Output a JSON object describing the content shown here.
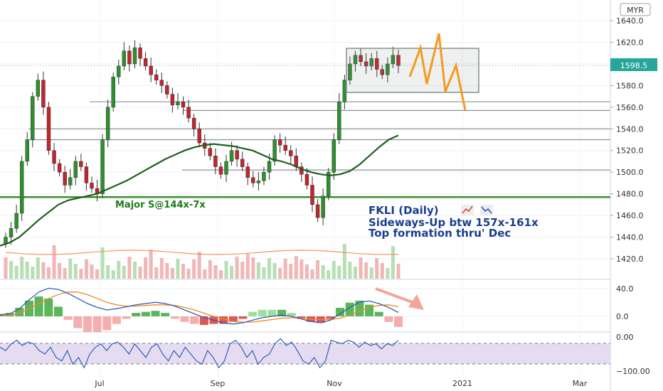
{
  "chart_data": {
    "type": "candlestick",
    "currency_badge": "MYR",
    "last_price_label": "1598.5",
    "price_axis": {
      "min": 1400,
      "max": 1650,
      "ticks": [
        "1640.0",
        "1620.0",
        "1600.0",
        "1580.0",
        "1560.0",
        "1540.0",
        "1520.0",
        "1500.0",
        "1480.0",
        "1460.0",
        "1440.0",
        "1420.0"
      ]
    },
    "macd_axis": {
      "ticks": [
        "40.0",
        "0.0"
      ]
    },
    "rsi_axis": {
      "ticks": [
        "0.00",
        "−100.00"
      ]
    },
    "x_ticks": [
      "Jul",
      "Sep",
      "Nov",
      "2021",
      "Mar"
    ],
    "annotations": {
      "support": "Major S@144x-7x",
      "title": "FKLI (Daily)",
      "line2": "Sideways-Up btw 157x-161x",
      "line3": "Top formation thru' Dec"
    },
    "horizontal_levels": [
      1565,
      1557,
      1540,
      1530,
      1502,
      1477
    ],
    "major_support": 1477,
    "range_box": {
      "from": 1573,
      "to": 1613
    },
    "close": [
      1440,
      1448,
      1462,
      1510,
      1530,
      1570,
      1585,
      1560,
      1520,
      1508,
      1500,
      1488,
      1495,
      1510,
      1505,
      1490,
      1485,
      1480,
      1530,
      1560,
      1588,
      1598,
      1612,
      1600,
      1615,
      1605,
      1598,
      1590,
      1585,
      1580,
      1572,
      1562,
      1565,
      1560,
      1550,
      1540,
      1527,
      1522,
      1515,
      1505,
      1498,
      1510,
      1520,
      1512,
      1505,
      1495,
      1490,
      1492,
      1500,
      1510,
      1530,
      1525,
      1520,
      1515,
      1505,
      1498,
      1488,
      1470,
      1458,
      1478,
      1500,
      1530,
      1565,
      1585,
      1600,
      1608,
      1602,
      1598,
      1605,
      1595,
      1590,
      1600,
      1608,
      1598.5
    ],
    "ma": [
      1432,
      1435,
      1440,
      1448,
      1456,
      1463,
      1470,
      1474,
      1476,
      1478,
      1480,
      1484,
      1488,
      1492,
      1497,
      1502,
      1507,
      1512,
      1516,
      1520,
      1523,
      1525,
      1526,
      1525,
      1524,
      1522,
      1520,
      1516,
      1512,
      1510,
      1507,
      1503,
      1500,
      1498,
      1497,
      1498,
      1501,
      1507,
      1515,
      1523,
      1530,
      1534
    ],
    "macd_line": [
      2,
      4,
      12,
      26,
      38,
      44,
      42,
      36,
      28,
      20,
      14,
      10,
      12,
      15,
      18,
      20,
      22,
      20,
      16,
      10,
      4,
      -2,
      -6,
      -10,
      -12,
      -10,
      -6,
      -2,
      0,
      2,
      0,
      -4,
      -8,
      -10,
      -6,
      4,
      14,
      22,
      24,
      20,
      14,
      6
    ],
    "macd_signal": [
      1,
      2,
      5,
      12,
      20,
      28,
      34,
      38,
      38,
      34,
      28,
      22,
      18,
      16,
      16,
      17,
      18,
      18,
      17,
      14,
      10,
      5,
      0,
      -4,
      -8,
      -9,
      -9,
      -7,
      -5,
      -3,
      -2,
      -3,
      -4,
      -5,
      -5,
      -3,
      2,
      8,
      14,
      17,
      18,
      15
    ],
    "rsi": [
      -30,
      -40,
      -20,
      -10,
      -25,
      -15,
      -20,
      -40,
      -50,
      -30,
      -60,
      -70,
      -40,
      -80,
      -60,
      -90,
      -50,
      -30,
      -20,
      -40,
      -20,
      -15,
      -30,
      -50,
      -20,
      -40,
      -60,
      -30,
      -20,
      -50,
      -70,
      -40,
      -60,
      -30,
      -50,
      -70,
      -80,
      -40,
      -60,
      -90,
      -70,
      -20,
      -10,
      -30,
      -60,
      -40,
      -80,
      -60,
      -50,
      -20,
      -5,
      -25,
      -15,
      -40,
      -70,
      -80,
      -60,
      -90,
      -70,
      -10,
      -15,
      -20,
      -10,
      -15,
      -30,
      -15,
      -25,
      -20,
      -35,
      -20,
      -25,
      -10
    ]
  }
}
